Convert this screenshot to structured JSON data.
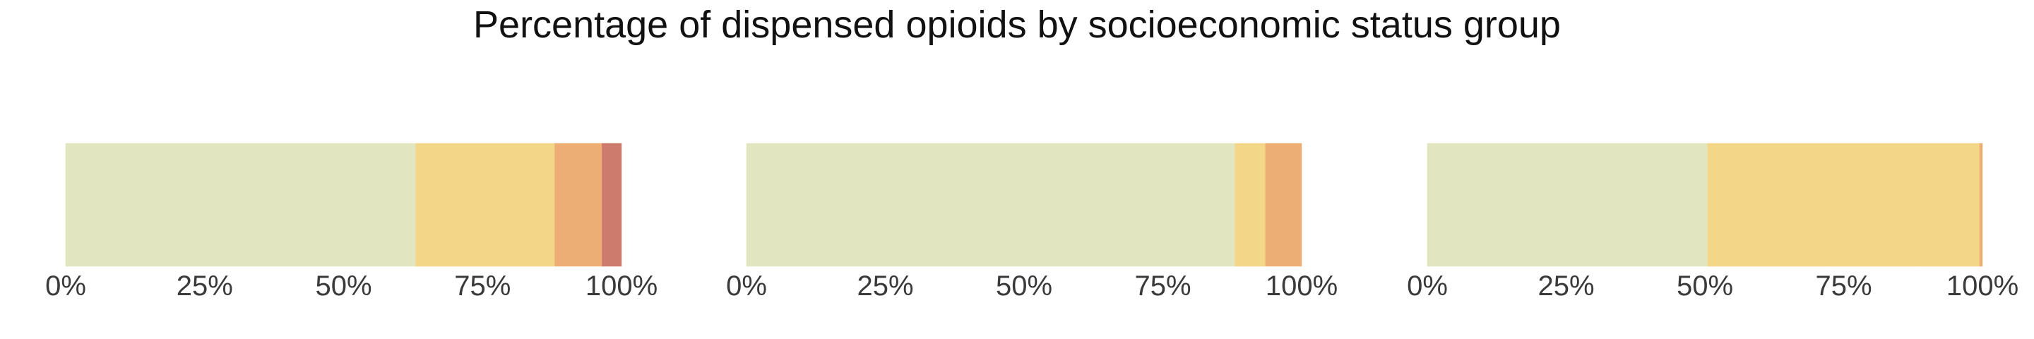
{
  "title": "Percentage of dispensed opioids by socioeconomic status group",
  "chart_data": [
    {
      "type": "bar",
      "orientation": "horizontal",
      "stacked": true,
      "xlim": [
        0,
        100
      ],
      "x_tick_labels": [
        "0%",
        "25%",
        "50%",
        "75%",
        "100%"
      ],
      "x_ticks": [
        0,
        25,
        50,
        75,
        100
      ],
      "grid": false,
      "segments": [
        {
          "value": 63,
          "color": "#e2e6c0"
        },
        {
          "value": 25,
          "color": "#f3d688"
        },
        {
          "value": 8.5,
          "color": "#edae76"
        },
        {
          "value": 3.5,
          "color": "#cc7b6c"
        }
      ]
    },
    {
      "type": "bar",
      "orientation": "horizontal",
      "stacked": true,
      "xlim": [
        0,
        100
      ],
      "x_tick_labels": [
        "0%",
        "25%",
        "50%",
        "75%",
        "100%"
      ],
      "x_ticks": [
        0,
        25,
        50,
        75,
        100
      ],
      "grid": false,
      "segments": [
        {
          "value": 88,
          "color": "#e2e6c0"
        },
        {
          "value": 5.5,
          "color": "#f3d688"
        },
        {
          "value": 6.5,
          "color": "#edae76"
        }
      ]
    },
    {
      "type": "bar",
      "orientation": "horizontal",
      "stacked": true,
      "xlim": [
        0,
        100
      ],
      "x_tick_labels": [
        "0%",
        "25%",
        "50%",
        "75%",
        "100%"
      ],
      "x_ticks": [
        0,
        25,
        50,
        75,
        100
      ],
      "grid": false,
      "segments": [
        {
          "value": 50.5,
          "color": "#e2e6c0"
        },
        {
          "value": 21.5,
          "color": "#f3d688"
        },
        {
          "value": 16,
          "color": "#f3d688"
        },
        {
          "value": 11.5,
          "color": "#f3d688"
        },
        {
          "value": 0.5,
          "color": "#edae76"
        }
      ]
    }
  ]
}
